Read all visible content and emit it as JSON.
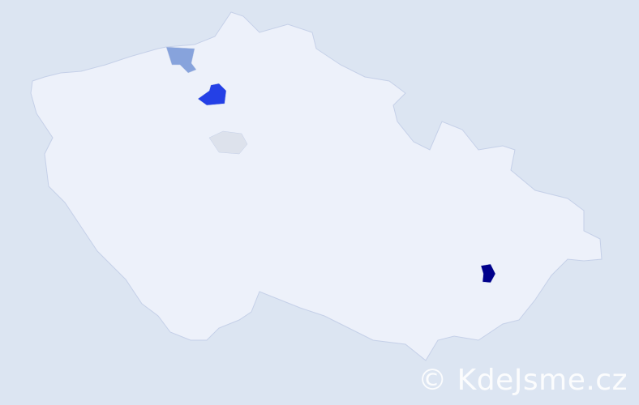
{
  "map": {
    "background_color": "#dce5f2",
    "land_color": "#edf1fa",
    "border_color": "#c5d0e8",
    "regions": [
      {
        "name": "highlight-darkest",
        "color": "#00008b"
      },
      {
        "name": "highlight-strong",
        "color": "#2440e6"
      },
      {
        "name": "highlight-medium",
        "color": "#87a3dc"
      },
      {
        "name": "highlight-light",
        "color": "#dde2ec"
      }
    ]
  },
  "watermark": {
    "text": "© KdeJsme.cz"
  }
}
